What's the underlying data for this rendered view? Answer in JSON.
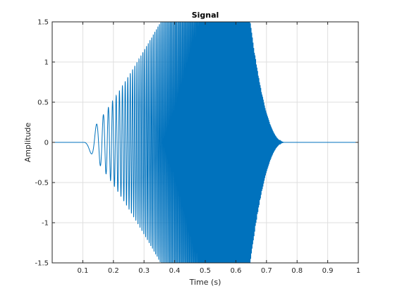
{
  "chart_data": {
    "type": "line",
    "title": "Signal",
    "xlabel": "Time (s)",
    "ylabel": "Amplitude",
    "xlim": [
      0,
      1
    ],
    "ylim": [
      -1.5,
      1.5
    ],
    "grid": true,
    "x_ticks": [
      0.1,
      0.2,
      0.3,
      0.4,
      0.5,
      0.6,
      0.7,
      0.8,
      0.9,
      1
    ],
    "x_tick_labels": [
      "0.1",
      "0.2",
      "0.3",
      "0.4",
      "0.5",
      "0.6",
      "0.7",
      "0.8",
      "0.9",
      "1"
    ],
    "y_ticks": [
      -1.5,
      -1,
      -0.5,
      0,
      0.5,
      1,
      1.5
    ],
    "y_tick_labels": [
      "-1.5",
      "-1",
      "-0.5",
      "0",
      "0.5",
      "1",
      "1.5"
    ],
    "series": [
      {
        "color": "#0072BD",
        "description": "chirp signal: zero until ~0.1 s, oscillation with rising frequency and growing amplitude (clipped at ±1.5) from ~0.2 s to ~0.6 s, then decaying rapidly to zero by ~0.75 s",
        "x": [
          0.1,
          0.12,
          0.14,
          0.16,
          0.18,
          0.2,
          0.22,
          0.24,
          0.26,
          0.28,
          0.3,
          0.35,
          0.4,
          0.45,
          0.5,
          0.55,
          0.6,
          0.62,
          0.64,
          0.66,
          0.68,
          0.7,
          0.72,
          0.74,
          0.76,
          1.0
        ],
        "y": [
          0,
          -0.02,
          0.3,
          -0.47,
          0.92,
          -1.0,
          1.4,
          1.5,
          1.5,
          1.5,
          1.5,
          1.5,
          1.5,
          1.5,
          1.5,
          1.5,
          1.5,
          1.3,
          1.1,
          0.8,
          0.4,
          0.25,
          0.12,
          0.04,
          0,
          0
        ]
      }
    ]
  }
}
